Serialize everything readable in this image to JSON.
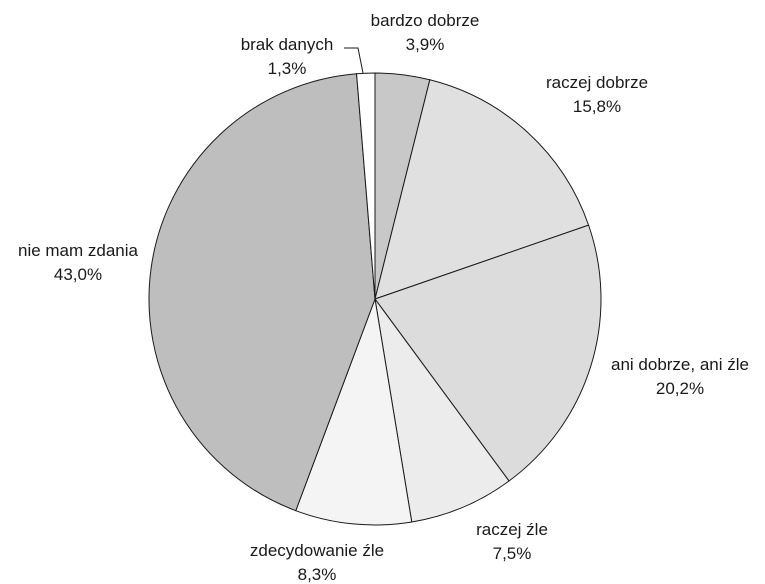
{
  "chart_data": {
    "type": "pie",
    "start_angle_deg": 0,
    "direction": "clockwise",
    "slices": [
      {
        "label": "bardzo dobrze",
        "value_text": "3,9%",
        "value": 3.9,
        "color": "#c8c8c8"
      },
      {
        "label": "raczej dobrze",
        "value_text": "15,8%",
        "value": 15.8,
        "color": "#e0e0e0"
      },
      {
        "label": "ani dobrze, ani źle",
        "value_text": "20,2%",
        "value": 20.2,
        "color": "#dcdcdc"
      },
      {
        "label": "raczej źle",
        "value_text": "7,5%",
        "value": 7.5,
        "color": "#ececec"
      },
      {
        "label": "zdecydowanie źle",
        "value_text": "8,3%",
        "value": 8.3,
        "color": "#f4f4f4"
      },
      {
        "label": "nie mam zdania",
        "value_text": "43,0%",
        "value": 43.0,
        "color": "#bebebe"
      },
      {
        "label": "brak danych",
        "value_text": "1,3%",
        "value": 1.3,
        "color": "#ffffff"
      }
    ]
  }
}
